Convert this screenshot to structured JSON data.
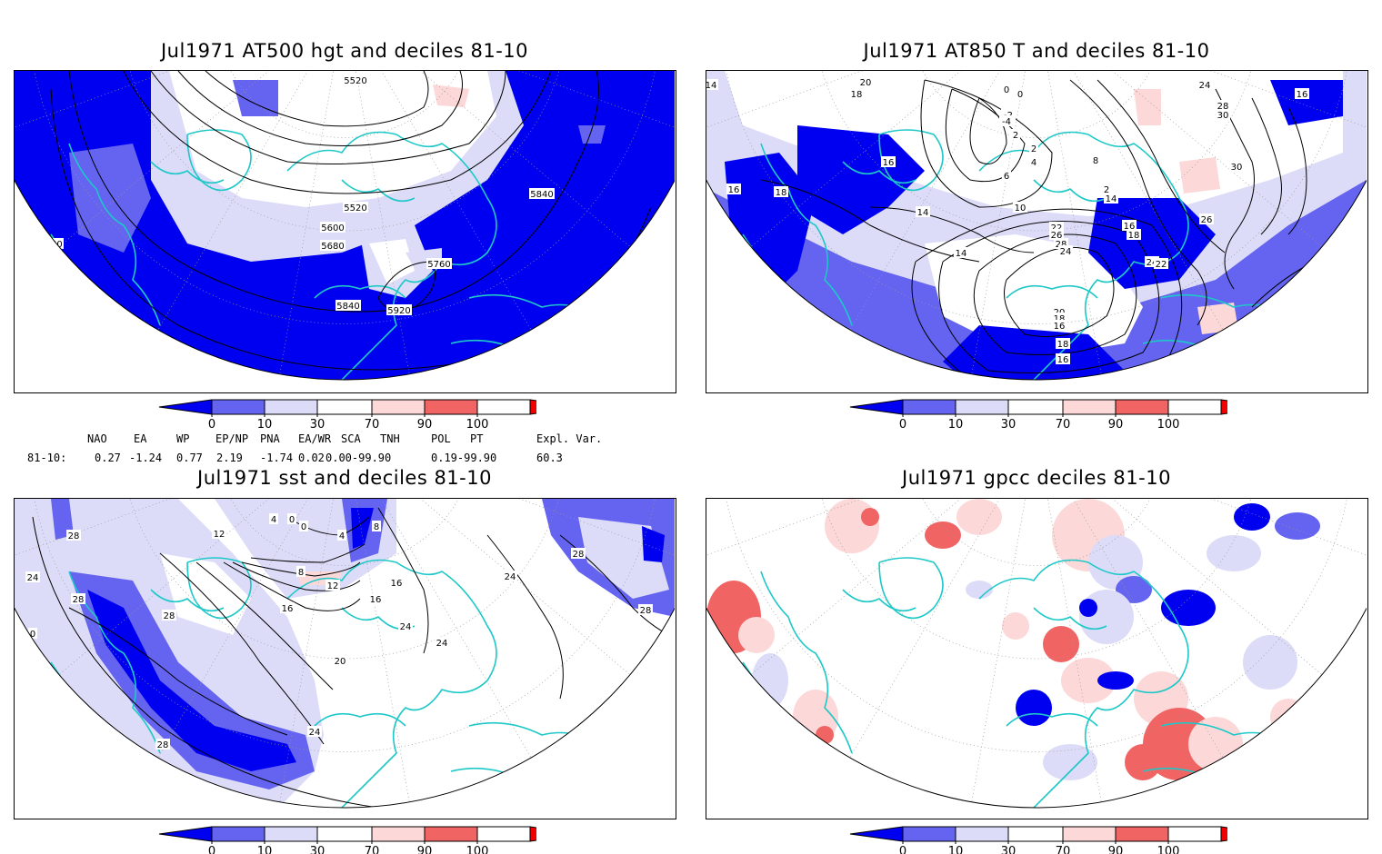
{
  "colors": {
    "deep_blue": "#0000f0",
    "mid_blue": "#6464f0",
    "light_blue": "#dcdcf8",
    "light_red": "#fcd8d8",
    "mid_red": "#f06464",
    "deep_red": "#f00000",
    "coast": "#1ec8c8"
  },
  "colorbar": {
    "ticks": [
      "0",
      "10",
      "30",
      "70",
      "90",
      "100"
    ]
  },
  "panels": [
    {
      "title": "Jul1971 AT500 hgt and deciles 81-10",
      "contour_labels": [
        "5520",
        "5600",
        "5680",
        "5760",
        "5840",
        "5840",
        "5840",
        "5840",
        "5920",
        "5520"
      ]
    },
    {
      "title": "Jul1971 AT850 T and deciles 81-10",
      "contour_labels": [
        "14",
        "20",
        "18",
        "16",
        "0",
        "0",
        "-2",
        "-4",
        "2",
        "2",
        "4",
        "6",
        "8",
        "24",
        "28",
        "30",
        "30",
        "16",
        "16",
        "18",
        "14",
        "14",
        "10",
        "2",
        "14",
        "16",
        "18",
        "22",
        "26",
        "28",
        "24",
        "26",
        "24",
        "22",
        "20",
        "18",
        "16",
        "18",
        "16"
      ]
    },
    {
      "title": "Jul1971 sst and deciles 81-10",
      "contour_labels": [
        "28",
        "24",
        "28",
        "28",
        "12",
        "4",
        "0",
        "0",
        "8",
        "12",
        "16",
        "16",
        "16",
        "24",
        "24",
        "20",
        "24",
        "28",
        "28",
        "28",
        "24",
        "0",
        "4",
        "8"
      ]
    },
    {
      "title": "Jul1971 gpcc deciles 81-10",
      "contour_labels": []
    }
  ],
  "indices": {
    "header": [
      "NAO",
      "EA",
      "WP",
      "EP/NP",
      "PNA",
      "EA/WR",
      "SCA",
      "TNH",
      "POL",
      "PT",
      "Expl. Var."
    ],
    "row_label": "81-10:",
    "values": [
      "0.27",
      "-1.24",
      "0.77",
      "2.19",
      "-1.74",
      "0.02",
      "0.00-99.90",
      "0.19-99.90",
      "60.3"
    ]
  }
}
